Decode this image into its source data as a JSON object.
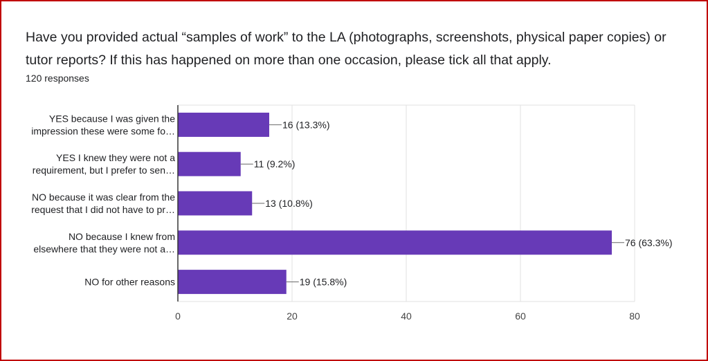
{
  "question": {
    "title": "Have you provided actual “samples of work” to the LA (photographs, screenshots, physical paper copies) or tutor reports?   If this has happened on more than one occasion, please tick all that apply.",
    "responses": "120 responses"
  },
  "colors": {
    "bar": "#673ab7",
    "grid": "#e0e0e0",
    "axis": "#333333",
    "text": "#202124",
    "border": "#c00000"
  },
  "chart_data": {
    "type": "bar",
    "orientation": "horizontal",
    "categories": [
      [
        "YES because I was given the",
        "impression these were some fo…"
      ],
      [
        "YES I knew they were not a",
        "requirement, but I prefer to sen…"
      ],
      [
        "NO because it was clear from the",
        "request that I did not have to pr…"
      ],
      [
        "NO because I knew from",
        "elsewhere that they were not a…"
      ],
      [
        "NO for other reasons"
      ]
    ],
    "values": [
      16,
      11,
      13,
      76,
      19
    ],
    "data_labels": [
      "16 (13.3%)",
      "11 (9.2%)",
      "13 (10.8%)",
      "76 (63.3%)",
      "19 (15.8%)"
    ],
    "xlim": [
      0,
      80
    ],
    "xticks": [
      0,
      20,
      40,
      60,
      80
    ],
    "grid": true,
    "legend": "none"
  }
}
